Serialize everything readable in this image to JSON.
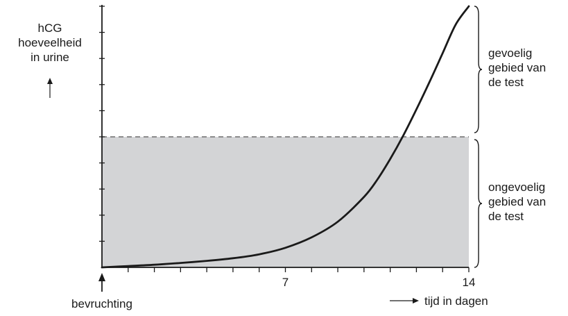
{
  "chart_data": {
    "type": "line",
    "title": "",
    "ylabel": [
      "hCG",
      "hoeveelheid",
      "in urine"
    ],
    "xlabel": "tijd in dagen",
    "x_origin_label": "bevruchting",
    "x_ticks": [
      {
        "value": 7,
        "label": "7"
      },
      {
        "value": 14,
        "label": "14"
      }
    ],
    "xlim": [
      0,
      14
    ],
    "ylim": [
      0,
      10
    ],
    "threshold": 5,
    "series": [
      {
        "x": [
          0,
          1,
          2,
          3,
          4,
          5,
          6,
          7,
          8,
          9,
          10,
          10.5,
          11,
          11.5,
          12,
          12.5,
          13,
          13.5,
          14
        ],
        "y": [
          0.0,
          0.05,
          0.1,
          0.17,
          0.25,
          0.35,
          0.5,
          0.75,
          1.15,
          1.75,
          2.7,
          3.35,
          4.15,
          5.05,
          6.05,
          7.1,
          8.2,
          9.3,
          10.0
        ]
      }
    ],
    "regions": [
      {
        "label": [
          "gevoelig",
          "gebied van",
          "de test"
        ],
        "from": 5,
        "to": 10
      },
      {
        "label": [
          "ongevoelig",
          "gebied van",
          "de test"
        ],
        "from": 0,
        "to": 5
      }
    ],
    "colors": {
      "shade": "#d3d4d6",
      "line": "#1a1a1a"
    }
  }
}
